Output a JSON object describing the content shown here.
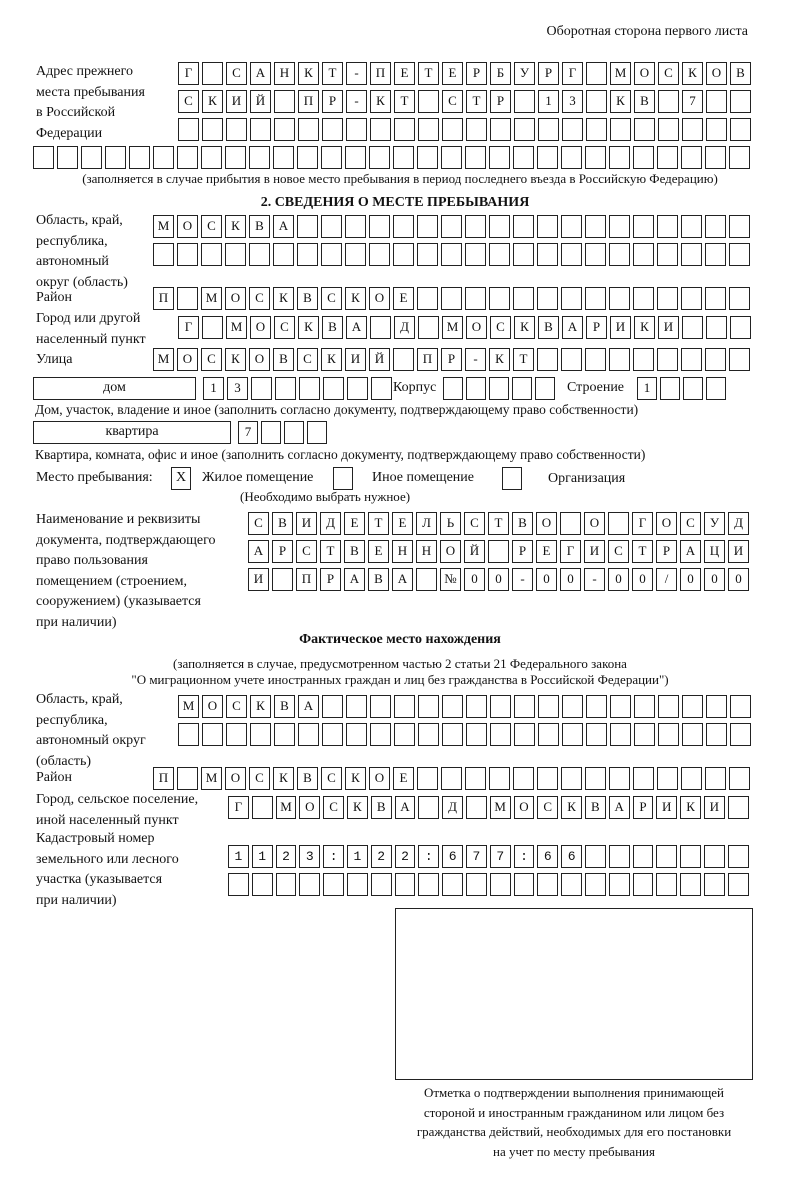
{
  "header": "Оборотная сторона первого листа",
  "prev_address": {
    "label": [
      "Адрес прежнего",
      "места пребывания",
      "в Российской",
      "Федерации"
    ],
    "rows": [
      "Г САНКТ-ПЕТЕРБУРГ МОСКОВ",
      "СКИЙ ПР-КТ СТР 13 КВ 7  ",
      "                        ",
      "                              "
    ],
    "note": "(заполняется в случае прибытия в новое место пребывания в период последнего въезда в Российскую Федерацию)"
  },
  "section2": {
    "title": "2. СВЕДЕНИЯ О МЕСТЕ ПРЕБЫВАНИЯ",
    "region_label": [
      "Область, край,",
      "республика,",
      "автономный",
      "округ (область)"
    ],
    "region_rows": [
      "МОСКВА                   ",
      "                         "
    ],
    "district_label": "Район",
    "district": "П МОСКВСКОЕ              ",
    "city_label": [
      "Город или другой",
      "населенный пункт"
    ],
    "city": "Г МОСКВА Д МОСКВАРИКИ   ",
    "street_label": "Улица",
    "street": "МОСКОВСКИЙ ПР-КТ         ",
    "house_type": "дом",
    "house": "13      ",
    "building_label": "Корпус",
    "building": "     ",
    "structure_label": "Строение",
    "structure": "1   ",
    "house_note": "Дом, участок, владение и иное (заполнить согласно документу, подтверждающему право собственности)",
    "apt_type": "квартира",
    "apt": "7   ",
    "apt_note": "Квартира, комната, офис и иное (заполнить согласно документу, подтверждающему право собственности)",
    "place_label": "Место пребывания:",
    "options": [
      {
        "label": "Жилое помещение",
        "mark": "X"
      },
      {
        "label": "Иное помещение",
        "mark": ""
      },
      {
        "label": "Организация",
        "mark": ""
      }
    ],
    "choose_note": "(Необходимо выбрать нужное)",
    "doc_label": [
      "Наименование и реквизиты",
      "документа, подтверждающего",
      "право пользования",
      "помещением (строением,",
      "сооружением) (указывается",
      "при наличии)"
    ],
    "doc_rows": [
      "СВИДЕТЕЛЬСТВО О ГОСУД",
      "АРСТВЕННОЙ РЕГИСТРАЦИ",
      "И ПРАВА №00-00-00/000"
    ]
  },
  "actual": {
    "title": "Фактическое место нахождения",
    "note1": "(заполняется в случае, предусмотренном частью 2 статьи 21 Федерального закона",
    "note2": "\"О миграционном учете иностранных граждан и лиц без гражданства в Российской Федерации\")",
    "region_label": [
      "Область, край,",
      "республика,",
      "автономный округ",
      "(область)"
    ],
    "region_rows": [
      "МОСКВА                  ",
      "                        "
    ],
    "district_label": "Район",
    "district": "П МОСКВСКОЕ              ",
    "city_label": [
      "Город, сельское поселение,",
      "иной населенный пункт"
    ],
    "city": "Г МОСКВА Д МОСКВАРИКИ ",
    "cadastral_label": [
      "Кадастровый номер",
      "земельного или лесного",
      "участка (указывается",
      "при наличии)"
    ],
    "cadastral_rows": [
      "1123:122:677:66       ",
      "                      "
    ]
  },
  "stamp_caption": [
    "Отметка о подтверждении выполнения принимающей",
    "стороной и иностранным гражданином или лицом без",
    "гражданства действий, необходимых для его постановки",
    "на учет по месту пребывания"
  ]
}
